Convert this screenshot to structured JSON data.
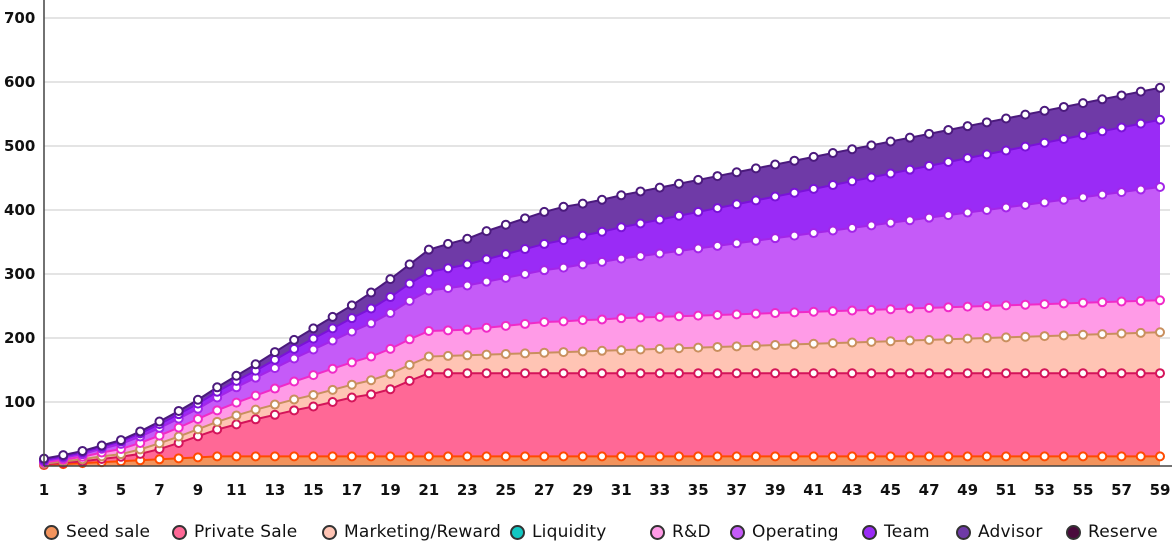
{
  "chart_data": {
    "type": "area",
    "stacked": true,
    "x": [
      1,
      2,
      3,
      4,
      5,
      6,
      7,
      8,
      9,
      10,
      11,
      12,
      13,
      14,
      15,
      16,
      17,
      18,
      19,
      20,
      21,
      22,
      23,
      24,
      25,
      26,
      27,
      28,
      29,
      30,
      31,
      32,
      33,
      34,
      35,
      36,
      37,
      38,
      39,
      40,
      41,
      42,
      43,
      44,
      45,
      46,
      47,
      48,
      49,
      50,
      51,
      52,
      53,
      54,
      55,
      56,
      57,
      58,
      59
    ],
    "x_tick_labels": [
      "1",
      "3",
      "5",
      "7",
      "9",
      "11",
      "13",
      "15",
      "17",
      "19",
      "21",
      "23",
      "25",
      "27",
      "29",
      "31",
      "33",
      "35",
      "37",
      "39",
      "41",
      "43",
      "45",
      "47",
      "49",
      "51",
      "53",
      "55",
      "57",
      "59"
    ],
    "ylim": [
      0,
      700
    ],
    "y_ticks": [
      100,
      200,
      300,
      400,
      500,
      600,
      700
    ],
    "y_tick_labels": [
      "100",
      "200",
      "300",
      "400",
      "500",
      "600",
      "700"
    ],
    "grid": "horizontal",
    "legend_position": "bottom",
    "title": "",
    "xlabel": "",
    "ylabel": "",
    "series": [
      {
        "name": "Seed sale",
        "color": "#F2935C",
        "line_color": "#FF4A00",
        "values": [
          1.5,
          3,
          4.5,
          6,
          7.5,
          9,
          10.5,
          12,
          13.5,
          15,
          15,
          15,
          15,
          15,
          15,
          15,
          15,
          15,
          15,
          15,
          15,
          15,
          15,
          15,
          15,
          15,
          15,
          15,
          15,
          15,
          15,
          15,
          15,
          15,
          15,
          15,
          15,
          15,
          15,
          15,
          15,
          15,
          15,
          15,
          15,
          15,
          15,
          15,
          15,
          15,
          15,
          15,
          15,
          15,
          15,
          15,
          15,
          15,
          15
        ]
      },
      {
        "name": "Private Sale",
        "color": "#FF6896",
        "line_color": "#D4145A",
        "values": [
          1,
          2,
          3,
          5,
          7,
          10,
          16,
          24,
          33,
          42,
          50,
          58,
          65,
          72,
          78,
          85,
          92,
          97,
          105,
          118,
          130,
          130,
          130,
          130,
          130,
          130,
          130,
          130,
          130,
          130,
          130,
          130,
          130,
          130,
          130,
          130,
          130,
          130,
          130,
          130,
          130,
          130,
          130,
          130,
          130,
          130,
          130,
          130,
          130,
          130,
          130,
          130,
          130,
          130,
          130,
          130,
          130,
          130,
          130
        ]
      },
      {
        "name": "Marketing/Reward",
        "color": "#FFC4B4",
        "line_color": "#C98F5E",
        "values": [
          1,
          2,
          3,
          4,
          4,
          7,
          9,
          10,
          11,
          12,
          14,
          15,
          16,
          17,
          18,
          19,
          20,
          22,
          24,
          25,
          26,
          27,
          28,
          29,
          30,
          31,
          32,
          33,
          34,
          35,
          36,
          37,
          38,
          39,
          40,
          41,
          42,
          43,
          44,
          45,
          46,
          47,
          48,
          49,
          50,
          51,
          52,
          53,
          54,
          55,
          56,
          57,
          58,
          59,
          60,
          61,
          62,
          63,
          64
        ]
      },
      {
        "name": "Liquidity",
        "color": "#12C7C2",
        "line_color": "#0A8F8C",
        "values": [
          0,
          0,
          0,
          0,
          0,
          0,
          0,
          0,
          0,
          0,
          0,
          0,
          0,
          0,
          0,
          0,
          0,
          0,
          0,
          0,
          0,
          0,
          0,
          0,
          0,
          0,
          0,
          0,
          0,
          0,
          0,
          0,
          0,
          0,
          0,
          0,
          0,
          0,
          0,
          0,
          0,
          0,
          0,
          0,
          0,
          0,
          0,
          0,
          0,
          0,
          0,
          0,
          0,
          0,
          0,
          0,
          0,
          0,
          0
        ]
      },
      {
        "name": "R&D",
        "color": "#FF9BE7",
        "line_color": "#F02AC8",
        "values": [
          2,
          3,
          4,
          6,
          8,
          10,
          12,
          14,
          16,
          18,
          20,
          22,
          25,
          28,
          31,
          33,
          35,
          37,
          39,
          40,
          40,
          40,
          40,
          42,
          44,
          46,
          48,
          48,
          49,
          49,
          50,
          50,
          50,
          50,
          50,
          50,
          50,
          50,
          50,
          50,
          50,
          50,
          50,
          50,
          50,
          50,
          50,
          50,
          50,
          50,
          50,
          50,
          50,
          50,
          50,
          50,
          50,
          50,
          50
        ]
      },
      {
        "name": "Operating",
        "color": "#C55BF8",
        "line_color": "#A325E8",
        "values": [
          2,
          3,
          4,
          6,
          8,
          10,
          12,
          14,
          16,
          20,
          24,
          28,
          32,
          36,
          40,
          44,
          48,
          52,
          56,
          60,
          63,
          66,
          69,
          72,
          75,
          78,
          81,
          84,
          87,
          90,
          93,
          96,
          99,
          102,
          105,
          108,
          111,
          114,
          117,
          120,
          123,
          126,
          129,
          132,
          135,
          138,
          141,
          144,
          147,
          150,
          153,
          156,
          159,
          162,
          165,
          168,
          171,
          174,
          177
        ]
      },
      {
        "name": "Team",
        "color": "#9A2BF6",
        "line_color": "#7A12D8",
        "values": [
          2,
          2,
          3,
          3,
          4,
          5,
          6,
          7,
          8,
          9,
          10,
          11,
          13,
          15,
          17,
          19,
          21,
          23,
          25,
          27,
          29,
          31,
          33,
          35,
          37,
          39,
          41,
          43,
          45,
          47,
          49,
          51,
          53,
          55,
          57,
          59,
          61,
          63,
          65,
          67,
          69,
          71,
          73,
          75,
          77,
          79,
          81,
          83,
          85,
          87,
          89,
          91,
          93,
          95,
          97,
          99,
          101,
          103,
          105
        ]
      },
      {
        "name": "Advisor",
        "color": "#6F3AA7",
        "line_color": "#4B1A7D",
        "values": [
          2,
          2,
          2,
          2,
          2,
          3,
          4,
          5,
          6,
          7,
          8,
          10,
          12,
          14,
          16,
          18,
          20,
          25,
          28,
          30,
          35,
          38,
          40,
          44,
          46,
          48,
          50,
          52,
          50,
          50,
          50,
          50,
          50,
          50,
          50,
          50,
          50,
          50,
          50,
          50,
          50,
          50,
          50,
          50,
          50,
          50,
          50,
          50,
          50,
          50,
          50,
          50,
          50,
          50,
          50,
          50,
          50,
          50,
          50
        ]
      },
      {
        "name": "Reserve",
        "color": "#4A0A3C",
        "line_color": "#3A002C",
        "values": [
          0,
          0,
          0,
          0,
          0,
          0,
          0,
          0,
          0,
          0,
          0,
          0,
          0,
          0,
          0,
          0,
          0,
          0,
          0,
          0,
          0,
          0,
          0,
          0,
          0,
          0,
          0,
          0,
          0,
          0,
          0,
          0,
          0,
          0,
          0,
          0,
          0,
          0,
          0,
          0,
          0,
          0,
          0,
          0,
          0,
          0,
          0,
          0,
          0,
          0,
          0,
          0,
          0,
          0,
          0,
          0,
          0,
          0,
          0
        ]
      }
    ]
  }
}
